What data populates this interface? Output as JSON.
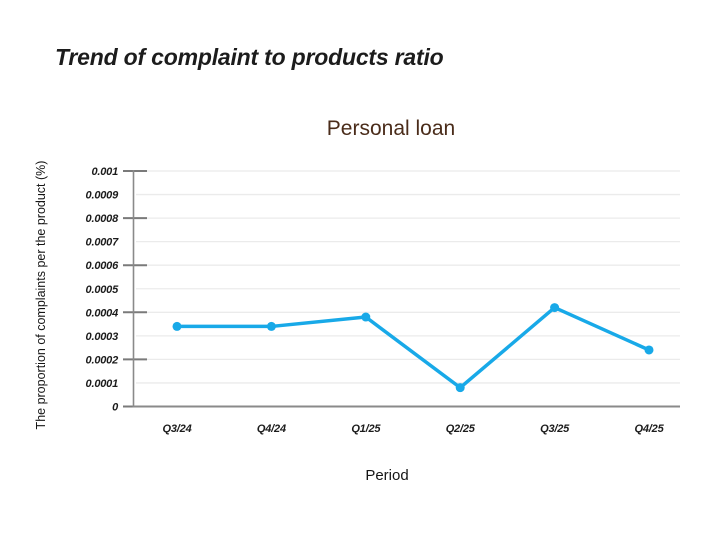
{
  "page": {
    "title": "Trend of complaint to products ratio"
  },
  "colors": {
    "line": "#18A9E8",
    "chart_title": "#4A2C1A",
    "axis": "#8a8a8a",
    "tick": "#7a7a7a",
    "grid": "#ebebeb",
    "text": "#1c1c1c"
  },
  "chart_data": {
    "type": "line",
    "title": "Personal loan",
    "xlabel": "Period",
    "ylabel": "The proportion of complaints per the product (%)",
    "categories": [
      "Q3/24",
      "Q4/24",
      "Q1/25",
      "Q2/25",
      "Q3/25",
      "Q4/25"
    ],
    "series": [
      {
        "name": "Personal loan",
        "values": [
          0.00034,
          0.00034,
          0.00038,
          8e-05,
          0.00042,
          0.00024
        ]
      }
    ],
    "ylim": [
      0,
      0.001
    ],
    "y_ticks": [
      "0",
      "0.0001",
      "0.0002",
      "0.0003",
      "0.0004",
      "0.0005",
      "0.0006",
      "0.0007",
      "0.0008",
      "0.0009",
      "0.001"
    ],
    "y_major_tick_step": 2,
    "grid": true,
    "legend": false
  }
}
